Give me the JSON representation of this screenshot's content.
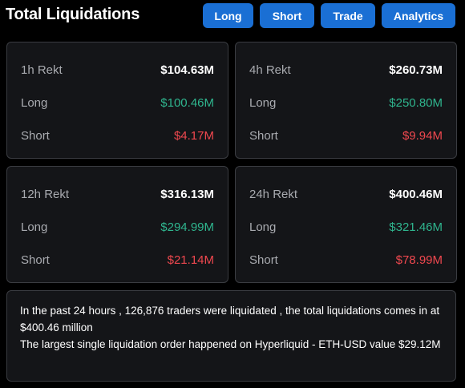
{
  "header": {
    "title": "Total Liquidations",
    "buttons": {
      "long": "Long",
      "short": "Short",
      "trade": "Trade",
      "analytics": "Analytics"
    }
  },
  "labels": {
    "long": "Long",
    "short": "Short"
  },
  "cards": [
    {
      "period_label": "1h Rekt",
      "total": "$104.63M",
      "long": "$100.46M",
      "short": "$4.17M"
    },
    {
      "period_label": "4h Rekt",
      "total": "$260.73M",
      "long": "$250.80M",
      "short": "$9.94M"
    },
    {
      "period_label": "12h Rekt",
      "total": "$316.13M",
      "long": "$294.99M",
      "short": "$21.14M"
    },
    {
      "period_label": "24h Rekt",
      "total": "$400.46M",
      "long": "$321.46M",
      "short": "$78.99M"
    }
  ],
  "summary": {
    "line1": "In the past 24 hours , 126,876 traders were liquidated , the total liquidations comes in at $400.46 million",
    "line2": "The largest single liquidation order happened on Hyperliquid - ETH-USD value $29.12M"
  },
  "colors": {
    "accent": "#1a6fd4",
    "long": "#2fb58e",
    "short": "#f0484f",
    "card_bg": "#141518",
    "border": "#3a3c41"
  }
}
